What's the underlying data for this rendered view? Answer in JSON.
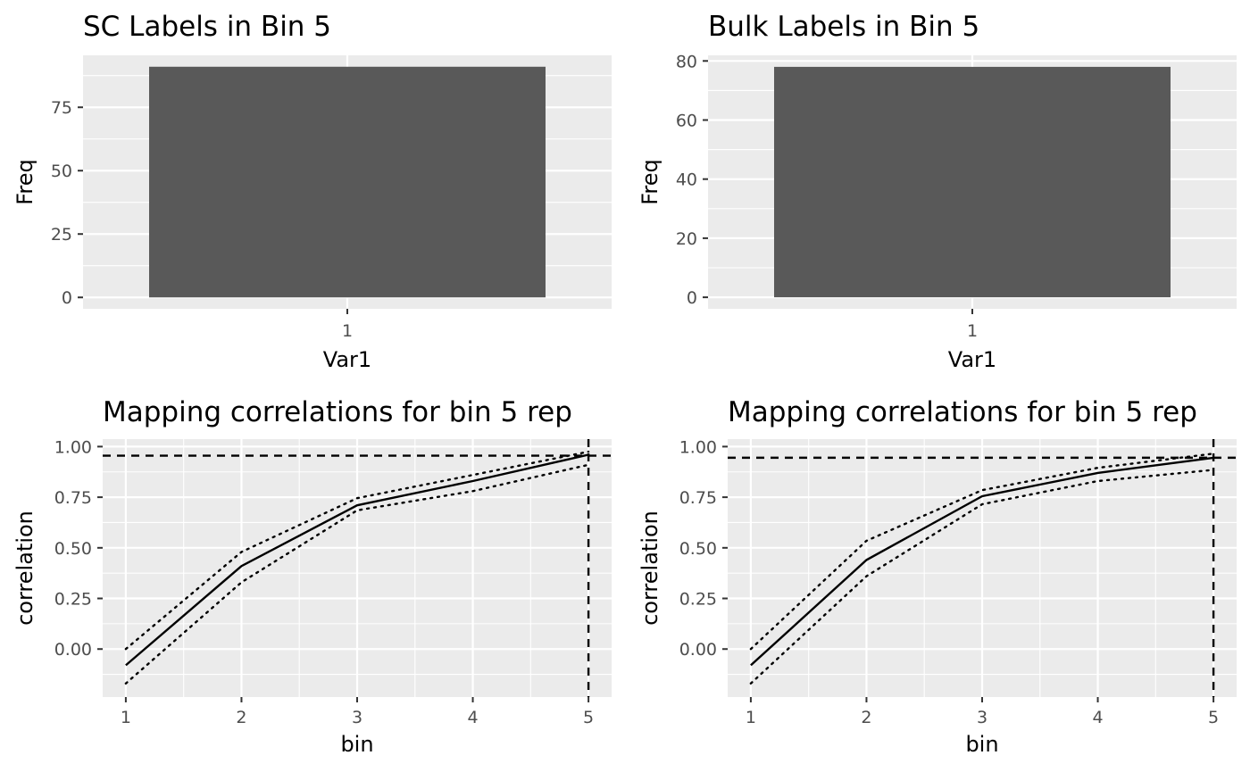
{
  "chart_data": [
    {
      "type": "bar",
      "title": "SC Labels in Bin 5",
      "xlabel": "Var1",
      "ylabel": "Freq",
      "categories": [
        "1"
      ],
      "values": [
        91
      ],
      "ylim": [
        -4.5,
        95.5
      ],
      "yticks": [
        0,
        25,
        50,
        75
      ],
      "ytick_labels": [
        "0",
        "25",
        "50",
        "75"
      ],
      "grid": true
    },
    {
      "type": "bar",
      "title": "Bulk Labels in Bin 5",
      "xlabel": "Var1",
      "ylabel": "Freq",
      "categories": [
        "1"
      ],
      "values": [
        78
      ],
      "ylim": [
        -3.9,
        81.9
      ],
      "yticks": [
        0,
        20,
        40,
        60,
        80
      ],
      "ytick_labels": [
        "0",
        "20",
        "40",
        "60",
        "80"
      ],
      "grid": true
    },
    {
      "type": "line",
      "title": "Mapping correlations for bin 5 rep",
      "xlabel": "bin",
      "ylabel": "correlation",
      "x": [
        1,
        2,
        3,
        4,
        5
      ],
      "series": [
        {
          "values": [
            -0.08,
            0.41,
            0.71,
            0.83,
            0.96
          ],
          "style": "solid"
        },
        {
          "values": [
            0.0,
            0.48,
            0.745,
            0.86,
            0.975
          ],
          "style": "dotted"
        },
        {
          "values": [
            -0.17,
            0.33,
            0.685,
            0.78,
            0.91
          ],
          "style": "dotted"
        }
      ],
      "hline": 0.955,
      "vline": 5,
      "xlim": [
        0.8,
        5.2
      ],
      "ylim": [
        -0.237,
        1.037
      ],
      "xticks": [
        1,
        2,
        3,
        4,
        5
      ],
      "yticks": [
        0.0,
        0.25,
        0.5,
        0.75,
        1.0
      ],
      "ytick_labels": [
        "0.00",
        "0.25",
        "0.50",
        "0.75",
        "1.00"
      ],
      "grid": true
    },
    {
      "type": "line",
      "title": "Mapping correlations for bin 5 rep",
      "xlabel": "bin",
      "ylabel": "correlation",
      "x": [
        1,
        2,
        3,
        4,
        5
      ],
      "series": [
        {
          "values": [
            -0.08,
            0.44,
            0.755,
            0.87,
            0.945
          ],
          "style": "solid"
        },
        {
          "values": [
            0.0,
            0.535,
            0.785,
            0.895,
            0.965
          ],
          "style": "dotted"
        },
        {
          "values": [
            -0.17,
            0.36,
            0.715,
            0.83,
            0.885
          ],
          "style": "dotted"
        }
      ],
      "hline": 0.945,
      "vline": 5,
      "xlim": [
        0.8,
        5.2
      ],
      "ylim": [
        -0.237,
        1.037
      ],
      "xticks": [
        1,
        2,
        3,
        4,
        5
      ],
      "yticks": [
        0.0,
        0.25,
        0.5,
        0.75,
        1.0
      ],
      "ytick_labels": [
        "0.00",
        "0.25",
        "0.50",
        "0.75",
        "1.00"
      ],
      "grid": true
    }
  ]
}
